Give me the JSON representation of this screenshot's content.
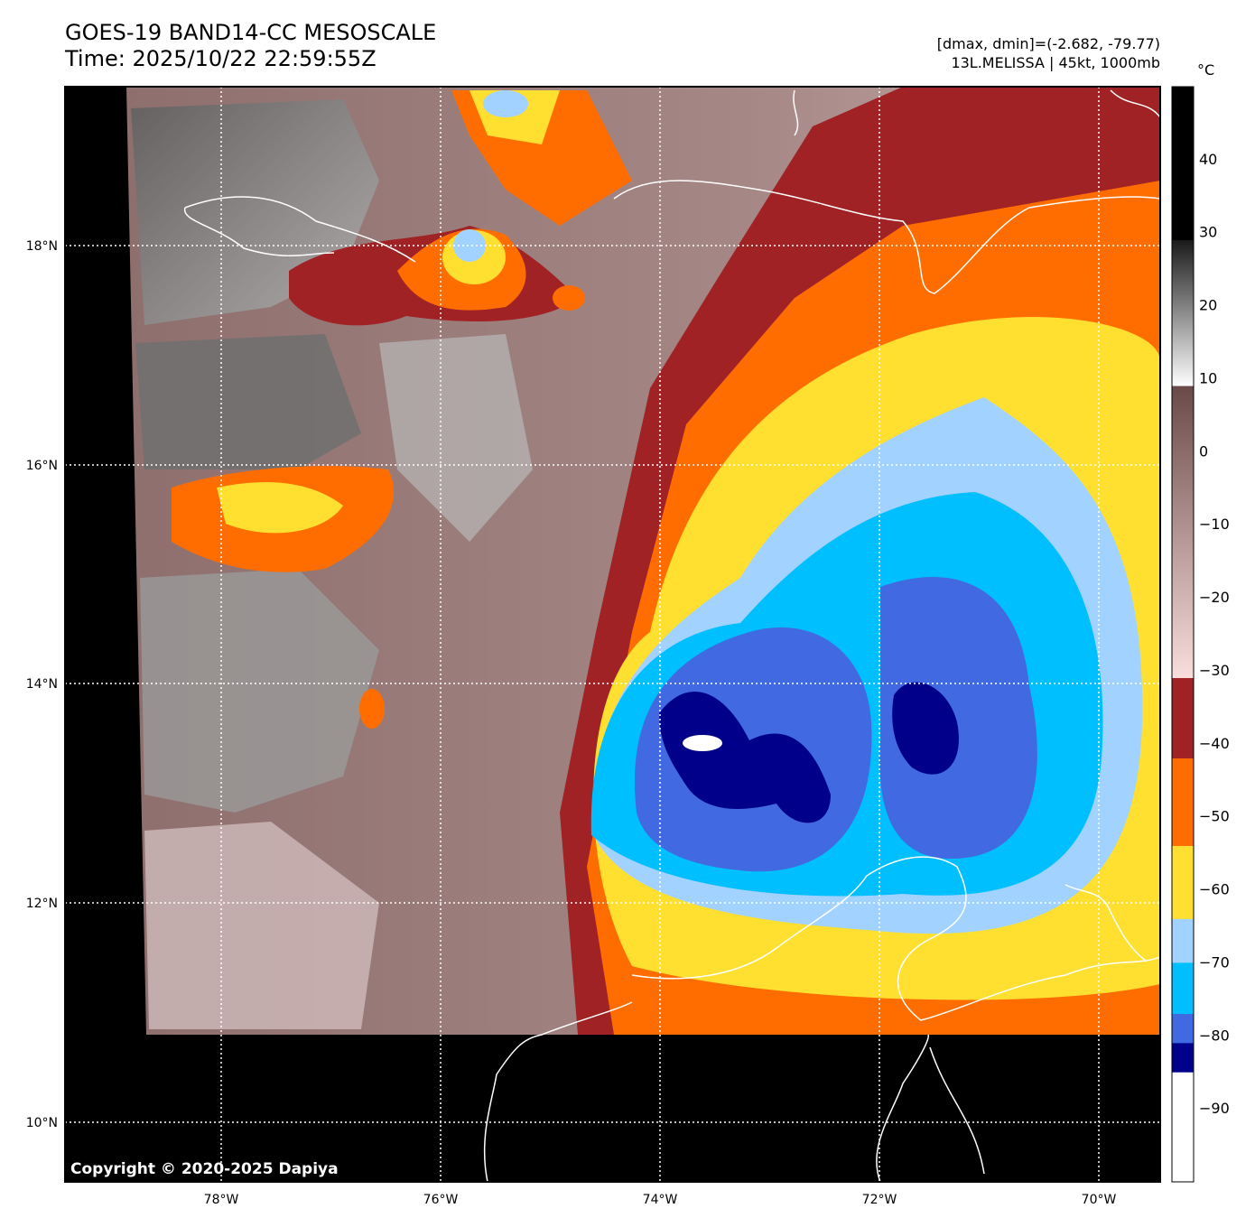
{
  "header": {
    "title": "GOES-19 BAND14-CC MESOSCALE",
    "time": "Time: 2025/10/22 22:59:55Z",
    "range_text": "[dmax, dmin]=(-2.682, -79.77)",
    "storm_text": "13L.MELISSA | 45kt, 1000mb"
  },
  "map": {
    "lon_labels": [
      "78°W",
      "76°W",
      "74°W",
      "72°W",
      "70°W"
    ],
    "lat_labels": [
      "18°N",
      "16°N",
      "14°N",
      "12°N",
      "10°N"
    ],
    "copyright": "Copyright © 2020-2025 Dapiya"
  },
  "colorbar": {
    "unit": "°C",
    "range": [
      -100,
      50
    ],
    "tick_values": [
      40,
      30,
      20,
      10,
      0,
      -10,
      -20,
      -30,
      -40,
      -50,
      -60,
      -70,
      -80,
      -90
    ],
    "tick_labels": [
      "40",
      "30",
      "20",
      "10",
      "0",
      "−10",
      "−20",
      "−30",
      "−40",
      "−50",
      "−60",
      "−70",
      "−80",
      "−90"
    ],
    "bands": [
      {
        "from": 29,
        "to": 50,
        "color": "#000000"
      },
      {
        "from": 9,
        "to": 29,
        "gradient": [
          "#ffffff",
          "#1a1a1a"
        ]
      },
      {
        "from": -31,
        "to": 9,
        "gradient": [
          "#f9dede",
          "#6a4a48"
        ]
      },
      {
        "from": -42,
        "to": -31,
        "color": "#a02224"
      },
      {
        "from": -54,
        "to": -42,
        "color": "#ff6d00"
      },
      {
        "from": -64,
        "to": -54,
        "color": "#ffe030"
      },
      {
        "from": -70,
        "to": -64,
        "color": "#a2d2ff"
      },
      {
        "from": -77,
        "to": -70,
        "color": "#00bfff"
      },
      {
        "from": -81,
        "to": -77,
        "color": "#4169e1"
      },
      {
        "from": -85,
        "to": -81,
        "color": "#00008b"
      },
      {
        "from": -100,
        "to": -85,
        "color": "#ffffff"
      }
    ]
  }
}
